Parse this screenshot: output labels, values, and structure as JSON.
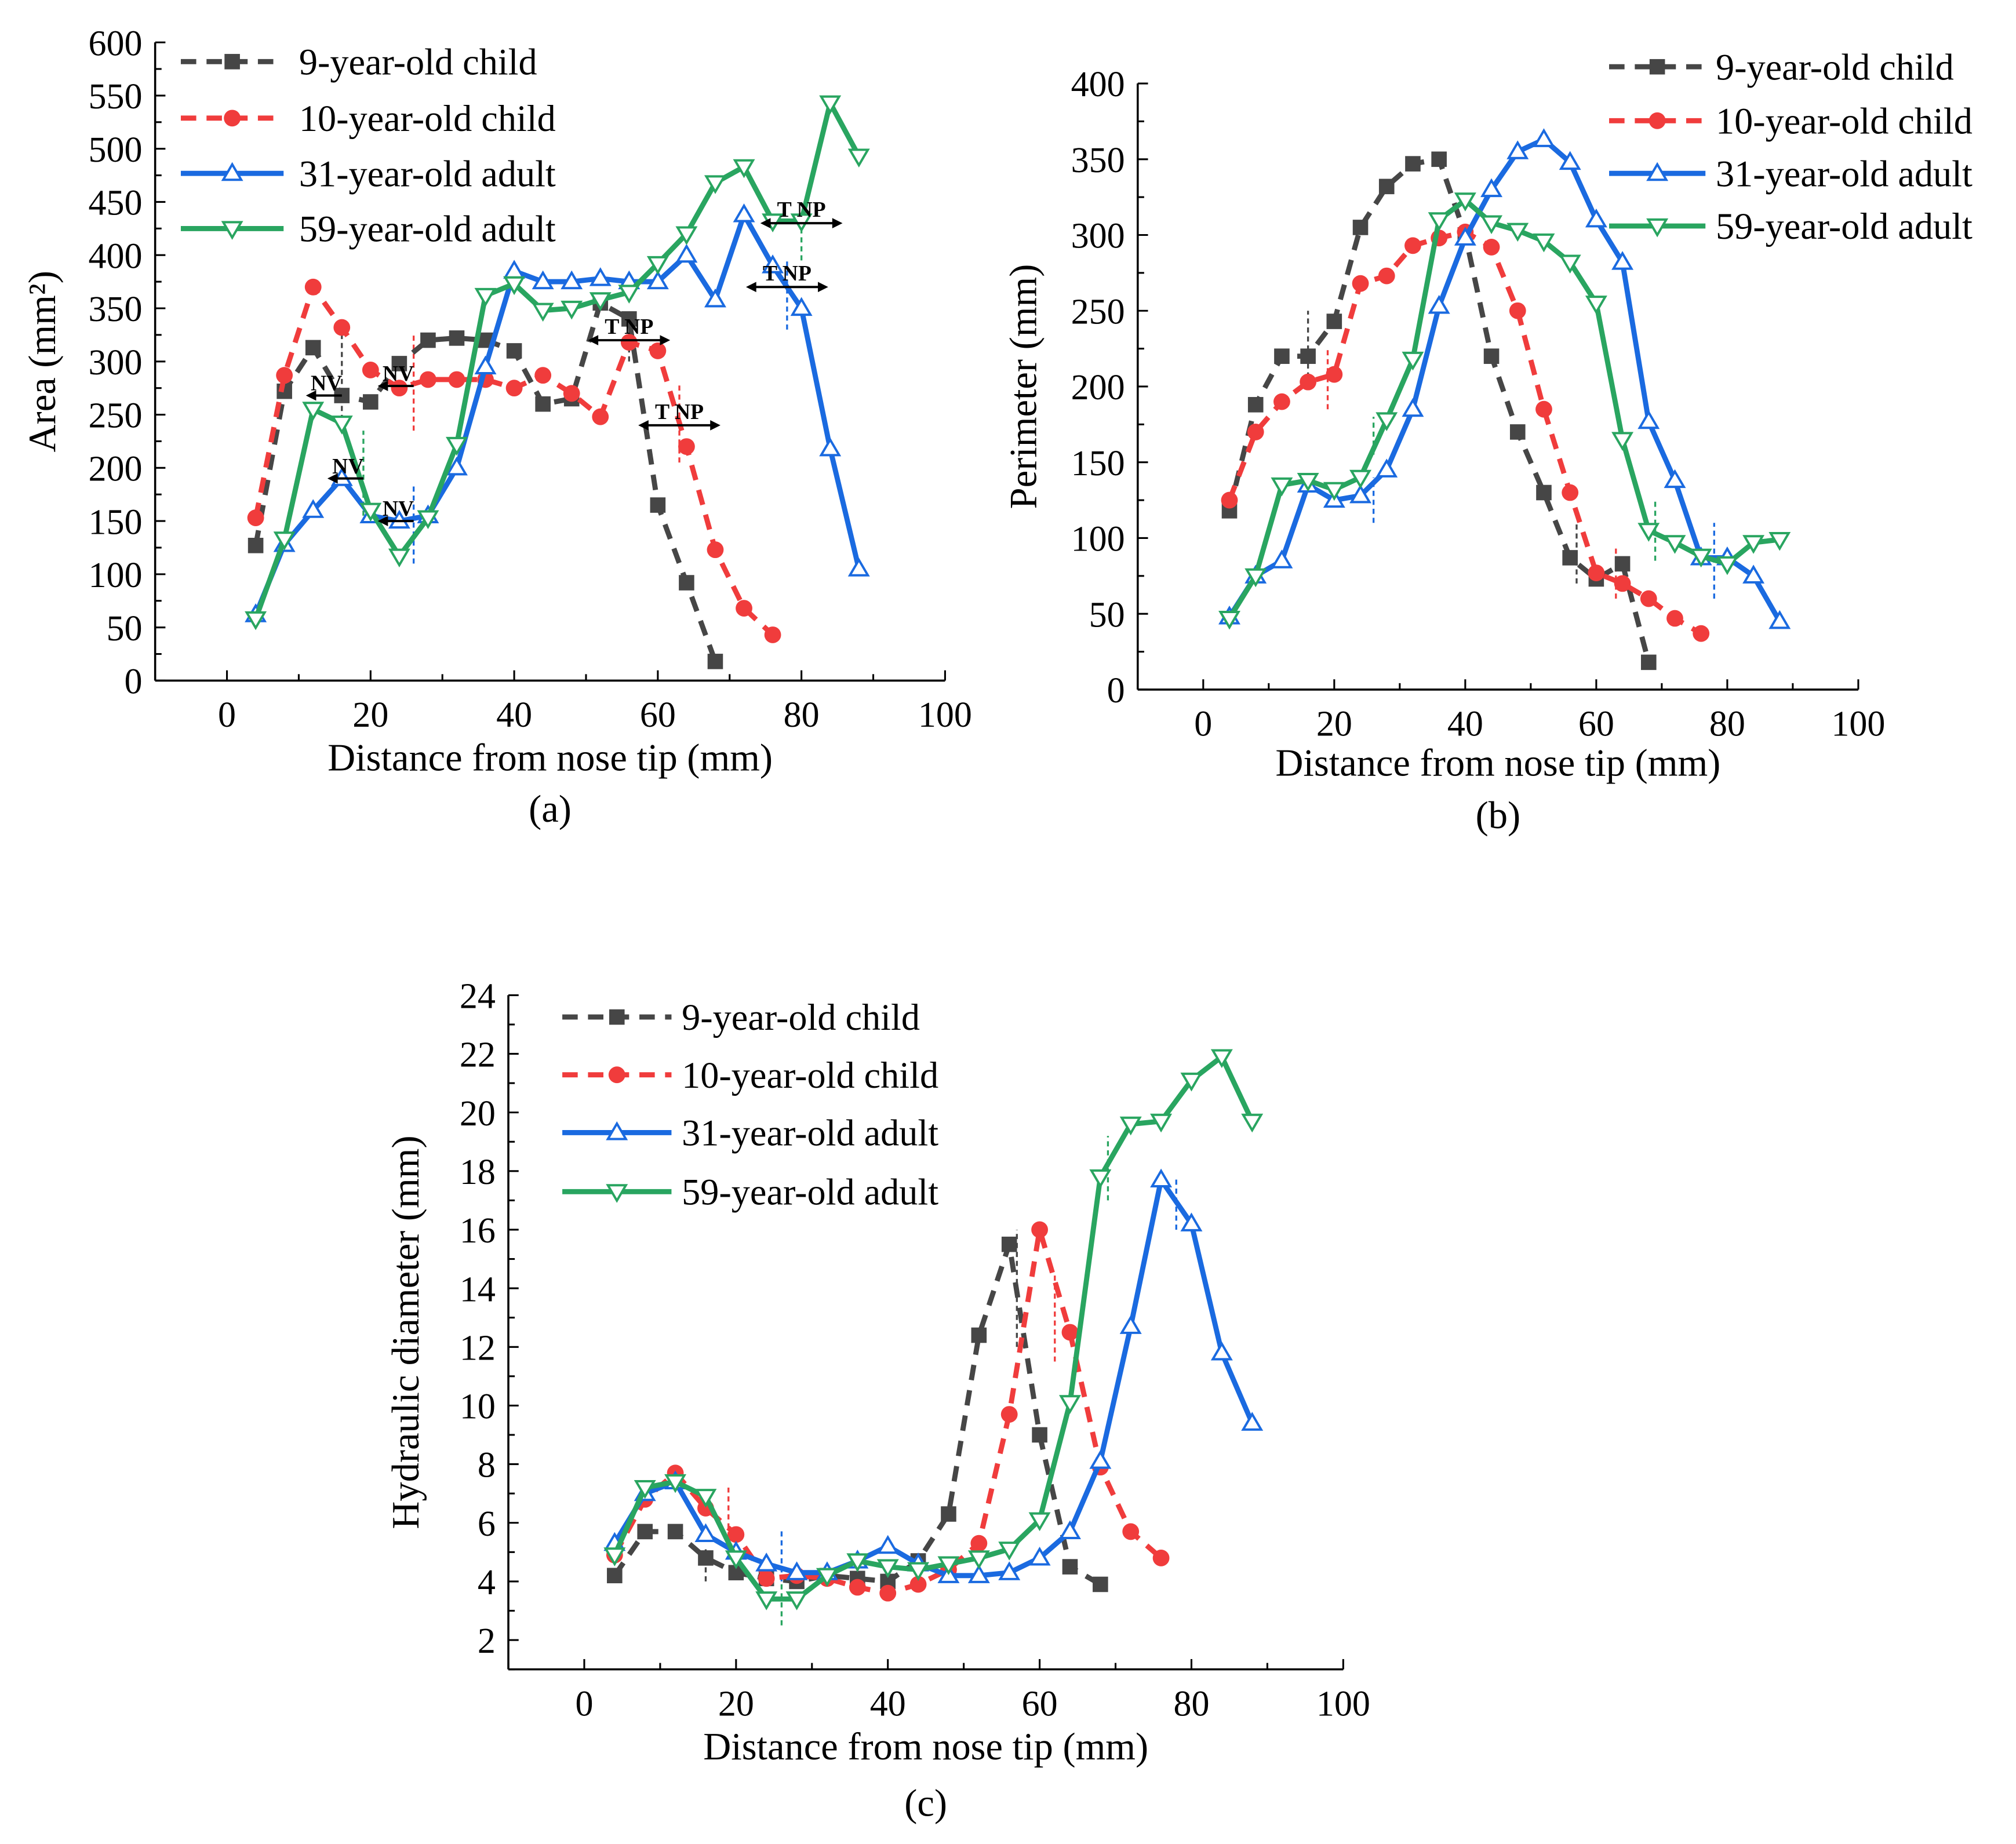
{
  "colors": {
    "c9": "#464646",
    "c10": "#f03c3c",
    "c31": "#1a6ae0",
    "c59": "#29a560",
    "axis": "#000000"
  },
  "legend": [
    "9-year-old child",
    "10-year-old child",
    "31-year-old adult",
    "59-year-old adult"
  ],
  "chart_data": [
    {
      "id": "a",
      "type": "line",
      "caption": "(a)",
      "xlabel": "Distance from nose tip (mm)",
      "ylabel": "Area (mm²)",
      "xlim": [
        -10,
        100
      ],
      "ylim": [
        0,
        600
      ],
      "xticks": [
        0,
        20,
        40,
        60,
        80,
        100
      ],
      "yticks": [
        0,
        50,
        100,
        150,
        200,
        250,
        300,
        350,
        400,
        450,
        500,
        550,
        600
      ],
      "legend_position": "top-left",
      "series": [
        {
          "name": "9-year-old child",
          "style": "dashed",
          "marker": "square",
          "x": [
            4,
            8,
            12,
            16,
            20,
            24,
            28,
            32,
            36,
            40,
            44,
            48,
            52,
            56,
            60,
            64,
            68
          ],
          "y": [
            127,
            272,
            313,
            268,
            262,
            298,
            320,
            322,
            320,
            310,
            260,
            265,
            355,
            340,
            165,
            92,
            18
          ]
        },
        {
          "name": "10-year-old child",
          "style": "dashed",
          "marker": "circle",
          "x": [
            4,
            8,
            12,
            16,
            20,
            24,
            28,
            32,
            36,
            40,
            44,
            48,
            52,
            56,
            60,
            64,
            68,
            72,
            76
          ],
          "y": [
            153,
            287,
            370,
            332,
            292,
            275,
            283,
            283,
            283,
            275,
            287,
            270,
            248,
            318,
            310,
            220,
            123,
            68,
            43
          ]
        },
        {
          "name": "31-year-old adult",
          "style": "solid",
          "marker": "triangle-up",
          "x": [
            4,
            8,
            12,
            16,
            20,
            24,
            28,
            32,
            36,
            40,
            44,
            48,
            52,
            56,
            60,
            64,
            68,
            72,
            76,
            80,
            84,
            88
          ],
          "y": [
            62,
            128,
            160,
            190,
            155,
            150,
            155,
            200,
            295,
            385,
            375,
            375,
            378,
            375,
            375,
            400,
            358,
            438,
            390,
            350,
            218,
            105
          ]
        },
        {
          "name": "59-year-old adult",
          "style": "solid",
          "marker": "triangle-down",
          "x": [
            4,
            8,
            12,
            16,
            20,
            24,
            28,
            32,
            36,
            40,
            44,
            48,
            52,
            56,
            60,
            64,
            68,
            72,
            76,
            80,
            84,
            88
          ],
          "y": [
            58,
            133,
            255,
            242,
            160,
            117,
            153,
            222,
            362,
            373,
            348,
            350,
            358,
            365,
            392,
            420,
            468,
            483,
            432,
            432,
            543,
            493
          ]
        }
      ],
      "annotations": [
        {
          "text": "NV",
          "series": 0,
          "x": 16,
          "y": 268,
          "arrow": "left",
          "line": [
            245,
            330
          ]
        },
        {
          "text": "NV",
          "series": 1,
          "x": 26,
          "y": 277,
          "arrow": "left",
          "line": [
            235,
            325
          ]
        },
        {
          "text": "NV",
          "series": 3,
          "x": 19,
          "y": 190,
          "arrow": "left",
          "line": [
            155,
            235
          ]
        },
        {
          "text": "NV",
          "series": 2,
          "x": 26,
          "y": 150,
          "arrow": "left",
          "line": [
            110,
            185
          ]
        },
        {
          "text": "T  NP",
          "series": 0,
          "x": 56,
          "y": 320,
          "arrow": "both",
          "line": [
            300,
            350
          ]
        },
        {
          "text": "T  NP",
          "series": 1,
          "x": 63,
          "y": 240,
          "arrow": "both",
          "line": [
            205,
            280
          ]
        },
        {
          "text": "T  NP",
          "series": 3,
          "x": 80,
          "y": 430,
          "arrow": "both",
          "line": [
            395,
            440
          ]
        },
        {
          "text": "T  NP",
          "series": 2,
          "x": 78,
          "y": 370,
          "arrow": "both",
          "line": [
            330,
            395
          ]
        }
      ]
    },
    {
      "id": "b",
      "type": "line",
      "caption": "(b)",
      "xlabel": "Distance from nose tip (mm)",
      "ylabel": "Perimeter (mm)",
      "xlim": [
        -10,
        100
      ],
      "ylim": [
        0,
        400
      ],
      "xticks": [
        0,
        20,
        40,
        60,
        80,
        100
      ],
      "yticks": [
        0,
        50,
        100,
        150,
        200,
        250,
        300,
        350,
        400
      ],
      "legend_position": "top-right",
      "series": [
        {
          "name": "9-year-old child",
          "style": "dashed",
          "marker": "square",
          "x": [
            4,
            8,
            12,
            16,
            20,
            24,
            28,
            32,
            36,
            40,
            44,
            48,
            52,
            56,
            60,
            64,
            68
          ],
          "y": [
            118,
            188,
            220,
            220,
            243,
            305,
            332,
            347,
            350,
            300,
            220,
            170,
            130,
            87,
            73,
            83,
            18
          ]
        },
        {
          "name": "10-year-old child",
          "style": "dashed",
          "marker": "circle",
          "x": [
            4,
            8,
            12,
            16,
            20,
            24,
            28,
            32,
            36,
            40,
            44,
            48,
            52,
            56,
            60,
            64,
            68,
            72,
            76
          ],
          "y": [
            125,
            170,
            190,
            203,
            208,
            268,
            273,
            293,
            298,
            302,
            292,
            250,
            185,
            130,
            77,
            70,
            60,
            47,
            37
          ]
        },
        {
          "name": "31-year-old adult",
          "style": "solid",
          "marker": "triangle-up",
          "x": [
            4,
            8,
            12,
            16,
            20,
            24,
            28,
            32,
            36,
            40,
            44,
            48,
            52,
            56,
            60,
            64,
            68,
            72,
            76,
            80,
            84,
            88
          ],
          "y": [
            48,
            75,
            85,
            135,
            125,
            128,
            145,
            185,
            253,
            298,
            330,
            355,
            363,
            348,
            310,
            282,
            177,
            138,
            87,
            87,
            75,
            45
          ]
        },
        {
          "name": "59-year-old adult",
          "style": "solid",
          "marker": "triangle-down",
          "x": [
            4,
            8,
            12,
            16,
            20,
            24,
            28,
            32,
            36,
            40,
            44,
            48,
            52,
            56,
            60,
            64,
            68,
            72,
            76,
            80,
            84,
            88
          ],
          "y": [
            47,
            75,
            135,
            138,
            132,
            140,
            178,
            218,
            310,
            323,
            308,
            303,
            296,
            282,
            255,
            165,
            105,
            97,
            88,
            83,
            97,
            99
          ]
        }
      ],
      "annotations": [
        {
          "series": 0,
          "x": 16,
          "line": [
            200,
            250
          ]
        },
        {
          "series": 1,
          "x": 19,
          "line": [
            185,
            225
          ]
        },
        {
          "series": 3,
          "x": 26,
          "line": [
            155,
            180
          ]
        },
        {
          "series": 2,
          "x": 26,
          "line": [
            110,
            140
          ]
        },
        {
          "series": 0,
          "x": 57,
          "line": [
            70,
            110
          ]
        },
        {
          "series": 1,
          "x": 63,
          "line": [
            60,
            95
          ]
        },
        {
          "series": 3,
          "x": 69,
          "line": [
            85,
            125
          ]
        },
        {
          "series": 2,
          "x": 78,
          "line": [
            60,
            110
          ]
        }
      ]
    },
    {
      "id": "c",
      "type": "line",
      "caption": "(c)",
      "xlabel": "Distance from nose tip (mm)",
      "ylabel": "Hydraulic diameter (mm)",
      "xlim": [
        -10,
        100
      ],
      "ylim": [
        1,
        24
      ],
      "xticks": [
        0,
        20,
        40,
        60,
        80,
        100
      ],
      "yticks": [
        2,
        4,
        6,
        8,
        10,
        12,
        14,
        16,
        18,
        20,
        22,
        24
      ],
      "legend_position": "top-left",
      "series": [
        {
          "name": "9-year-old child",
          "style": "dashed",
          "marker": "square",
          "x": [
            4,
            8,
            12,
            16,
            20,
            24,
            28,
            32,
            36,
            40,
            44,
            48,
            52,
            56,
            60,
            64,
            68
          ],
          "y": [
            4.2,
            5.7,
            5.7,
            4.8,
            4.3,
            4.1,
            4.0,
            4.2,
            4.1,
            4.0,
            4.7,
            6.3,
            12.4,
            15.5,
            9.0,
            4.5,
            3.9
          ]
        },
        {
          "name": "10-year-old child",
          "style": "dashed",
          "marker": "circle",
          "x": [
            4,
            8,
            12,
            16,
            20,
            24,
            28,
            32,
            36,
            40,
            44,
            48,
            52,
            56,
            60,
            64,
            68,
            72,
            76
          ],
          "y": [
            4.9,
            6.8,
            7.7,
            6.5,
            5.6,
            4.1,
            4.2,
            4.1,
            3.8,
            3.6,
            3.9,
            4.4,
            5.3,
            9.7,
            16.0,
            12.5,
            7.9,
            5.7,
            4.8
          ]
        },
        {
          "name": "31-year-old adult",
          "style": "solid",
          "marker": "triangle-up",
          "x": [
            4,
            8,
            12,
            16,
            20,
            24,
            28,
            32,
            36,
            40,
            44,
            48,
            52,
            56,
            60,
            64,
            68,
            72,
            76,
            80,
            84,
            88
          ],
          "y": [
            5.3,
            7.0,
            7.4,
            5.6,
            5.0,
            4.6,
            4.3,
            4.3,
            4.7,
            5.2,
            4.6,
            4.2,
            4.2,
            4.3,
            4.8,
            5.7,
            8.1,
            12.7,
            17.7,
            16.2,
            11.8,
            9.4
          ]
        },
        {
          "name": "59-year-old adult",
          "style": "solid",
          "marker": "triangle-down",
          "x": [
            4,
            8,
            12,
            16,
            20,
            24,
            28,
            32,
            36,
            40,
            44,
            48,
            52,
            56,
            60,
            64,
            68,
            72,
            76,
            80,
            84,
            88
          ],
          "y": [
            4.9,
            7.2,
            7.4,
            6.9,
            4.8,
            3.4,
            3.4,
            4.2,
            4.7,
            4.5,
            4.4,
            4.6,
            4.8,
            5.1,
            6.1,
            10.1,
            17.8,
            19.6,
            19.7,
            21.1,
            21.9,
            19.7
          ]
        }
      ],
      "annotations": [
        {
          "series": 0,
          "x": 16,
          "line": [
            4.0,
            5.2
          ]
        },
        {
          "series": 1,
          "x": 19,
          "line": [
            5.5,
            7.2
          ]
        },
        {
          "series": 2,
          "x": 26,
          "line": [
            4.0,
            5.8
          ]
        },
        {
          "series": 3,
          "x": 26,
          "line": [
            2.5,
            4.0
          ]
        },
        {
          "series": 0,
          "x": 57,
          "line": [
            12.0,
            16.0
          ]
        },
        {
          "series": 1,
          "x": 62,
          "line": [
            11.5,
            14.5
          ]
        },
        {
          "series": 3,
          "x": 69,
          "line": [
            17.0,
            19.2
          ]
        },
        {
          "series": 2,
          "x": 78,
          "line": [
            16.0,
            17.8
          ]
        }
      ]
    }
  ]
}
